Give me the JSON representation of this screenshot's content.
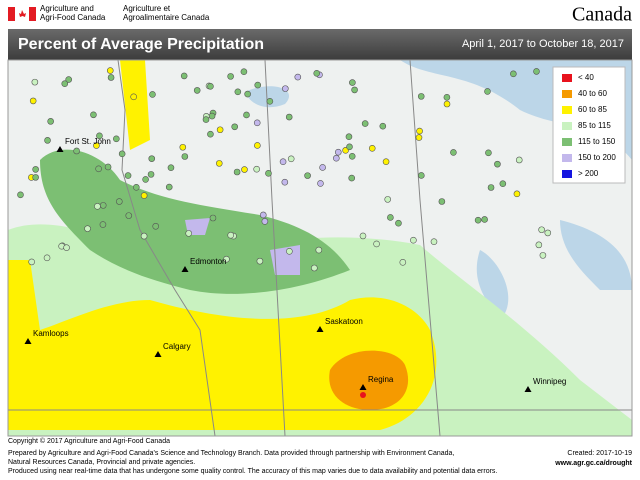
{
  "header": {
    "dept_en": [
      "Agriculture and",
      "Agri-Food Canada"
    ],
    "dept_fr": [
      "Agriculture et",
      "Agroalimentaire Canada"
    ],
    "wordmark": "Canada"
  },
  "title": "Percent of Average Precipitation",
  "date_range": "April 1, 2017 to October 18, 2017",
  "legend": [
    {
      "label": "< 40",
      "color": "#e8121d"
    },
    {
      "label": "40 to 60",
      "color": "#f59a00"
    },
    {
      "label": "60 to 85",
      "color": "#fff200"
    },
    {
      "label": "85 to 115",
      "color": "#c9f2c0"
    },
    {
      "label": "115 to 150",
      "color": "#7cbf73"
    },
    {
      "label": "150 to 200",
      "color": "#c3b8ec"
    },
    {
      "label": "> 200",
      "color": "#1414e0"
    }
  ],
  "cities": [
    "Fort St. John",
    "Edmonton",
    "Kamloops",
    "Calgary",
    "Saskatoon",
    "Regina",
    "Winnipeg"
  ],
  "copyright": "Copyright © 2017 Agriculture and Agri-Food Canada",
  "footer": [
    "Prepared by Agriculture and Agri-Food Canada's Science and Technology Branch. Data provided through partnership with Environment Canada,",
    "Natural Resources Canada, Provincial and private agencies.",
    "Produced using near real-time data that has undergone some quality control. The accuracy of this map varies due to data availability and potential data errors."
  ],
  "created": "Created: 2017-10-19",
  "url": "www.agr.gc.ca/drought"
}
